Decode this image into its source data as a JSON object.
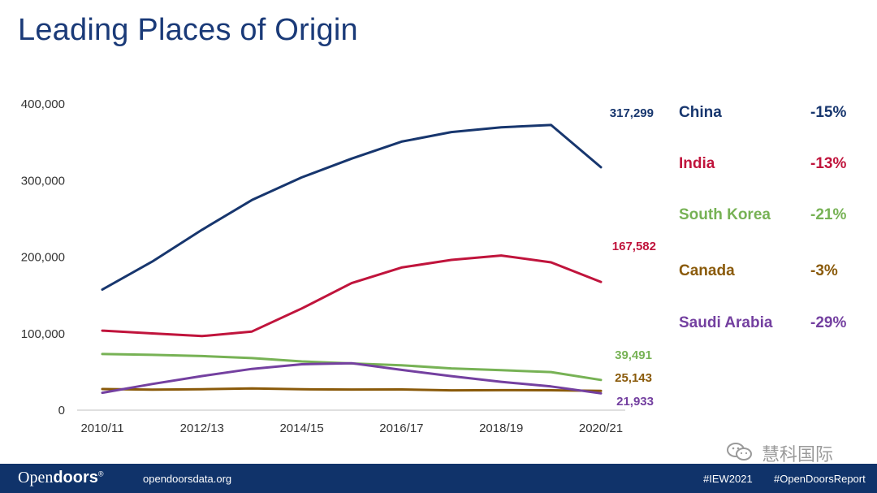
{
  "title": "Leading Places of Origin",
  "chart_data": {
    "type": "line",
    "title": "Leading Places of Origin",
    "xlabel": "",
    "ylabel": "",
    "x": [
      "2010/11",
      "2011/12",
      "2012/13",
      "2013/14",
      "2014/15",
      "2015/16",
      "2016/17",
      "2017/18",
      "2018/19",
      "2019/20",
      "2020/21"
    ],
    "x_tick_labels": [
      "2010/11",
      "2012/13",
      "2014/15",
      "2016/17",
      "2018/19",
      "2020/21"
    ],
    "ylim": [
      0,
      400000
    ],
    "y_ticks": [
      0,
      100000,
      200000,
      300000,
      400000
    ],
    "y_tick_labels": [
      "0",
      "100,000",
      "200,000",
      "300,000",
      "400,000"
    ],
    "grid": false,
    "series": [
      {
        "name": "China",
        "color": "#17366e",
        "change": "-15%",
        "end_label": "317,299",
        "values": [
          157558,
          194029,
          235597,
          274439,
          304040,
          328547,
          350755,
          363341,
          369548,
          372532,
          317299
        ]
      },
      {
        "name": "India",
        "color": "#c0143c",
        "change": "-13%",
        "end_label": "167,582",
        "values": [
          103895,
          100270,
          96754,
          102673,
          132888,
          165918,
          186267,
          196271,
          202014,
          193124,
          167582
        ]
      },
      {
        "name": "South Korea",
        "color": "#77b255",
        "change": "-21%",
        "end_label": "39,491",
        "values": [
          73351,
          72295,
          70627,
          68047,
          63710,
          61007,
          58663,
          54555,
          52250,
          49809,
          39491
        ]
      },
      {
        "name": "Canada",
        "color": "#8a5a0a",
        "change": "-3%",
        "end_label": "25,143",
        "values": [
          27546,
          26821,
          27357,
          28304,
          27240,
          26973,
          27065,
          25909,
          26122,
          25992,
          25143
        ]
      },
      {
        "name": "Saudi Arabia",
        "color": "#7440a0",
        "change": "-29%",
        "end_label": "21,933",
        "values": [
          22704,
          34139,
          44566,
          53919,
          59945,
          61287,
          52611,
          44432,
          37080,
          30957,
          21933
        ]
      }
    ]
  },
  "footer": {
    "brand_part1": "Open",
    "brand_part2": "doors",
    "brand_mark": "®",
    "url": "opendoorsdata.org",
    "hashtag1": "#IEW2021",
    "hashtag2": "#OpenDoorsReport"
  },
  "watermark": {
    "text": "慧科国际",
    "icon": "wechat-icon"
  }
}
